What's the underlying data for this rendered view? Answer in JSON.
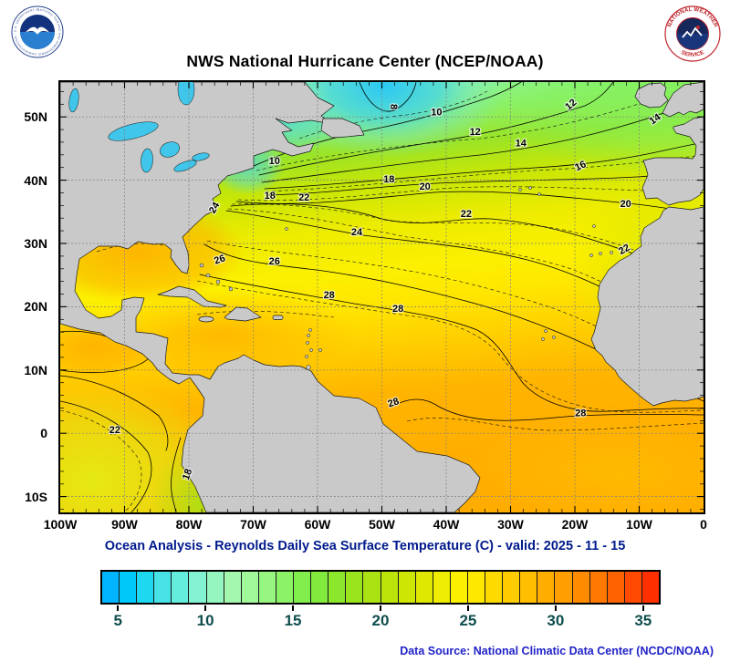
{
  "logos": {
    "noaa_ring_text": "NATIONAL OCEANIC AND ATMOSPHERIC ADMINISTRATION - U.S. DEPARTMENT OF COMMERCE",
    "nws_ring_top": "NATIONAL WEATHER",
    "nws_ring_bottom": "SERVICE"
  },
  "header": {
    "title": "NWS National Hurricane Center (NCEP/NOAA)"
  },
  "map": {
    "x_tick_labels": [
      "100W",
      "90W",
      "80W",
      "70W",
      "60W",
      "50W",
      "40W",
      "30W",
      "20W",
      "10W",
      "0"
    ],
    "y_tick_labels": [
      "50N",
      "40N",
      "30N",
      "20N",
      "10N",
      "0",
      "10S"
    ],
    "lon_range_deg_w": [
      100,
      0
    ],
    "lat_range_deg_n": [
      55.5,
      -12.5
    ],
    "contour_interval_c": 1,
    "contour_labels": [
      {
        "v": 8,
        "lon": 48.2,
        "lat": 51.6,
        "rot": 90
      },
      {
        "v": 10,
        "lon": 41.5,
        "lat": 50.7,
        "rot": 0
      },
      {
        "v": 10,
        "lon": 66.7,
        "lat": 43.0,
        "rot": 0
      },
      {
        "v": 12,
        "lon": 35.5,
        "lat": 47.6,
        "rot": 0
      },
      {
        "v": 12,
        "lon": 20.6,
        "lat": 51.9,
        "rot": -40
      },
      {
        "v": 14,
        "lon": 28.4,
        "lat": 45.8,
        "rot": 0
      },
      {
        "v": 14,
        "lon": 7.5,
        "lat": 49.6,
        "rot": -35
      },
      {
        "v": 16,
        "lon": 19.1,
        "lat": 42.2,
        "rot": -25
      },
      {
        "v": 18,
        "lon": 67.4,
        "lat": 37.5,
        "rot": 0
      },
      {
        "v": 18,
        "lon": 48.9,
        "lat": 40.1,
        "rot": 0
      },
      {
        "v": 18,
        "lon": 80.2,
        "lat": -6.5,
        "rot": -70
      },
      {
        "v": 20,
        "lon": 43.3,
        "lat": 38.9,
        "rot": 0
      },
      {
        "v": 20,
        "lon": 12.1,
        "lat": 36.2,
        "rot": 0
      },
      {
        "v": 22,
        "lon": 62.1,
        "lat": 37.2,
        "rot": 0
      },
      {
        "v": 22,
        "lon": 36.9,
        "lat": 34.6,
        "rot": 0
      },
      {
        "v": 22,
        "lon": 12.3,
        "lat": 29.0,
        "rot": -30
      },
      {
        "v": 22,
        "lon": 91.5,
        "lat": 0.5,
        "rot": 0
      },
      {
        "v": 24,
        "lon": 53.9,
        "lat": 31.7,
        "rot": 0
      },
      {
        "v": 24,
        "lon": 76.0,
        "lat": 35.6,
        "rot": -60
      },
      {
        "v": 26,
        "lon": 75.2,
        "lat": 27.4,
        "rot": -20
      },
      {
        "v": 26,
        "lon": 66.7,
        "lat": 27.1,
        "rot": 0
      },
      {
        "v": 28,
        "lon": 58.2,
        "lat": 21.8,
        "rot": 0
      },
      {
        "v": 28,
        "lon": 47.5,
        "lat": 19.6,
        "rot": 0
      },
      {
        "v": 28,
        "lon": 48.2,
        "lat": 4.8,
        "rot": -20
      },
      {
        "v": 28,
        "lon": 19.1,
        "lat": 3.1,
        "rot": 0
      }
    ]
  },
  "caption": {
    "text": "Ocean Analysis - Reynolds Daily Sea Surface Temperature (C) - valid: 2025 - 11 - 15"
  },
  "colorbar": {
    "value_min": 4,
    "value_max": 36,
    "tick_values": [
      5,
      10,
      15,
      20,
      25,
      30,
      35
    ],
    "tick_labels": [
      "5",
      "10",
      "15",
      "20",
      "25",
      "30",
      "35"
    ],
    "cell_colors": [
      "#00b4ff",
      "#00c8f8",
      "#1ed8f0",
      "#46e2e6",
      "#64ecdc",
      "#82f2d0",
      "#96f6c0",
      "#a4f8ae",
      "#a0f898",
      "#96f680",
      "#8cf266",
      "#82ee4e",
      "#82ea3c",
      "#8ce62c",
      "#9ae41e",
      "#aae214",
      "#bce40a",
      "#cee604",
      "#dee800",
      "#eeec00",
      "#fcf000",
      "#ffe800",
      "#ffda00",
      "#ffcc00",
      "#ffbe00",
      "#ffae00",
      "#ff9e00",
      "#ff8c00",
      "#ff7800",
      "#ff6200",
      "#ff4a00",
      "#ff3000"
    ]
  },
  "footer": {
    "source": "Data Source: National Climatic Data Center (NCDC/NOAA)"
  }
}
